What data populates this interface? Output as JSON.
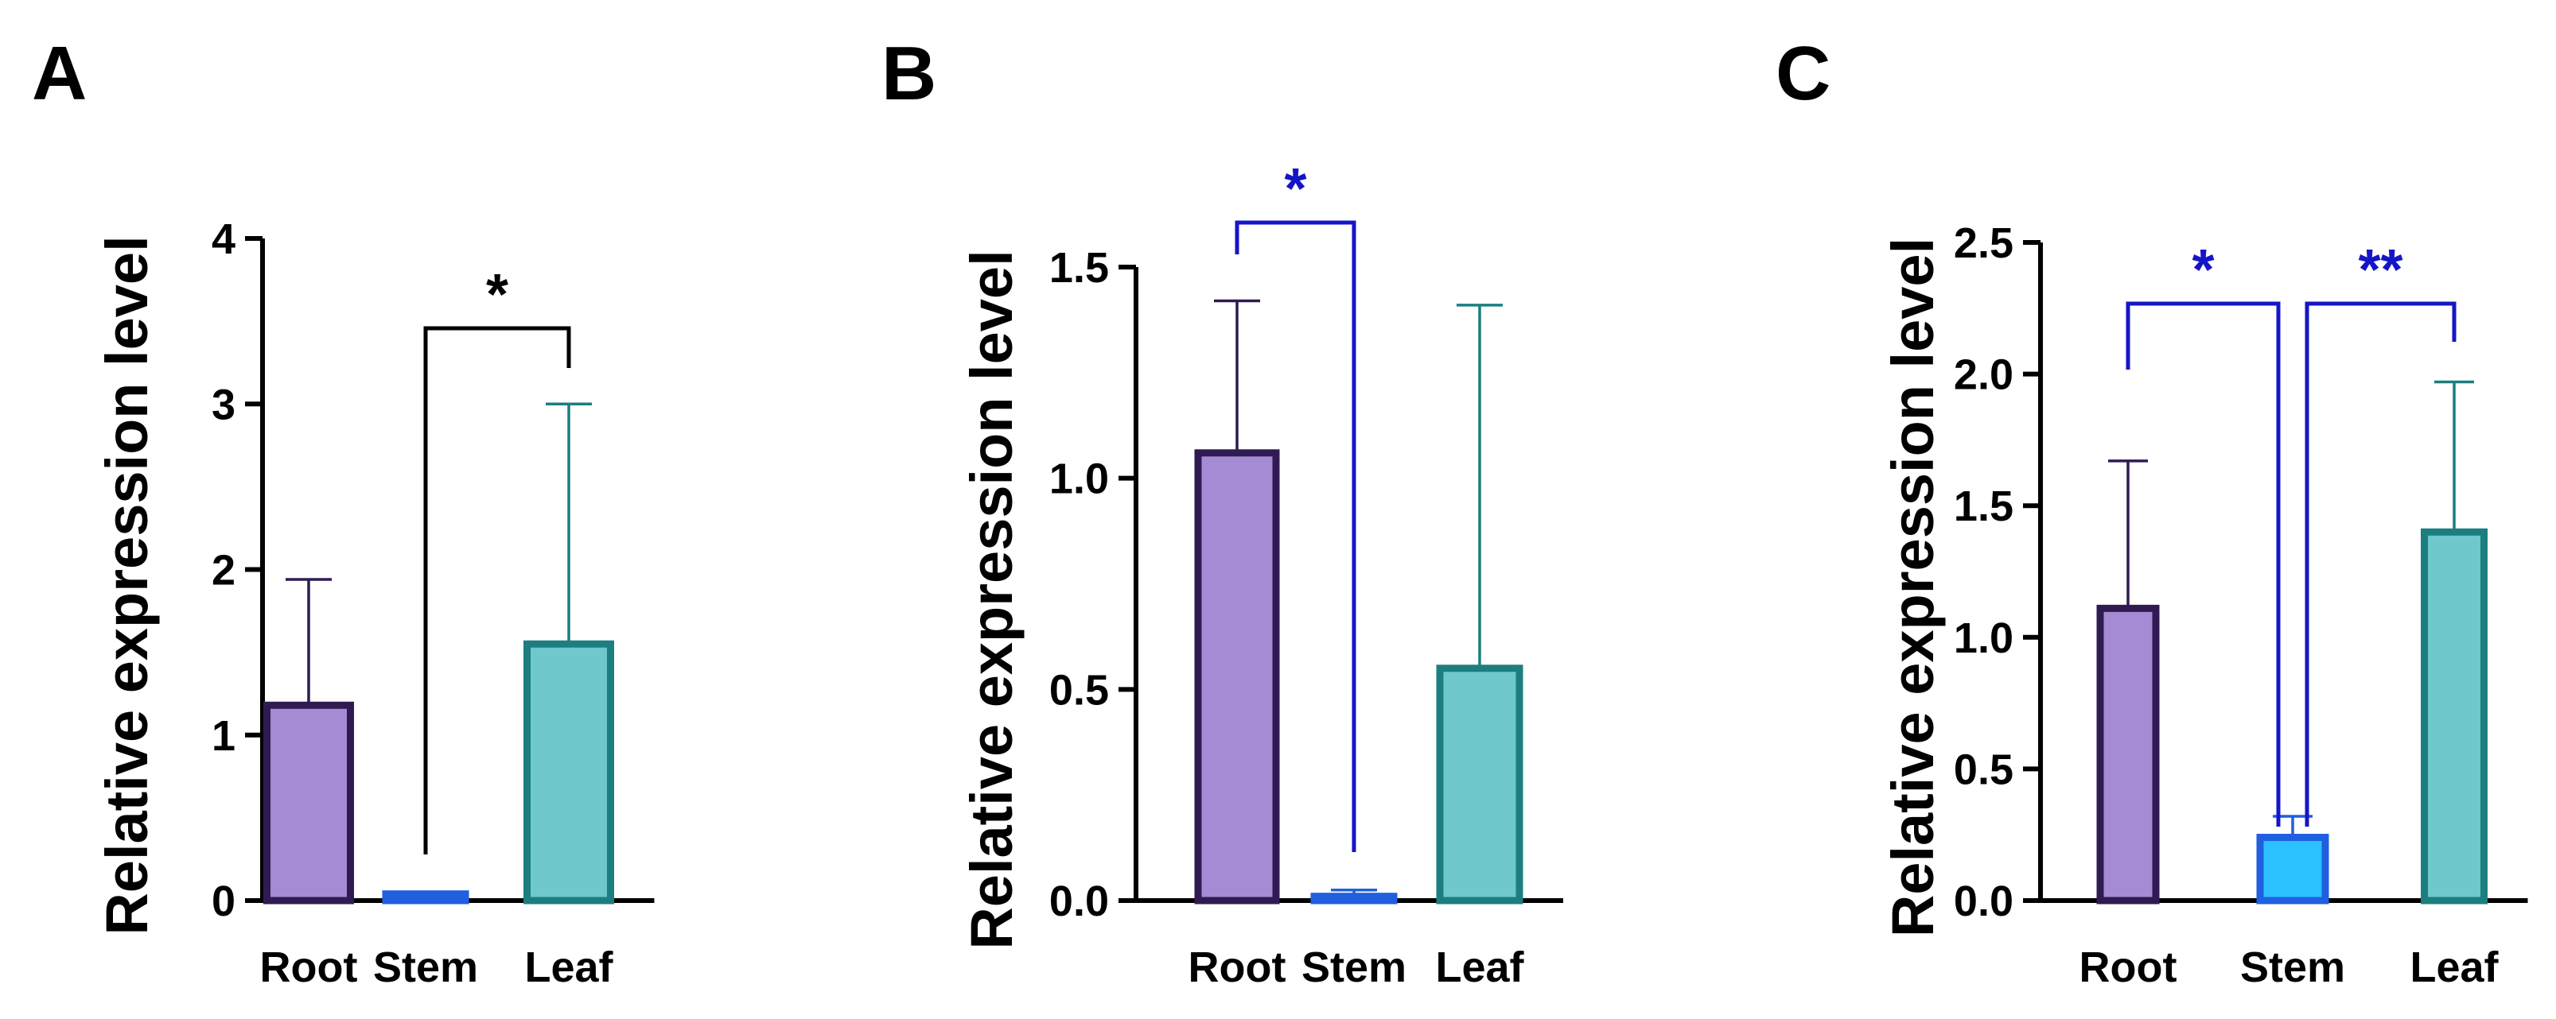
{
  "chart_data": [
    {
      "type": "bar",
      "panel": "A",
      "ylabel": "Relative expression level",
      "categories": [
        "Root",
        "Stem",
        "Leaf"
      ],
      "values": [
        1.18,
        0.04,
        1.55
      ],
      "error_upper": [
        1.94,
        0.05,
        3.0
      ],
      "ylim": [
        0,
        4
      ],
      "yticks": [
        0,
        1,
        2,
        3,
        4
      ],
      "ytick_labels": [
        "0",
        "1",
        "2",
        "3",
        "4"
      ],
      "fill_colors": [
        "#a58bd3",
        "#4f8ff2",
        "#6fc8cc"
      ],
      "edge_colors": [
        "#2f1b52",
        "#1f5fe0",
        "#1c7e7f"
      ],
      "significance": [
        {
          "from": 1,
          "to": 2,
          "label": "*",
          "color": "#000000"
        }
      ]
    },
    {
      "type": "bar",
      "panel": "B",
      "ylabel": "Relative expression level",
      "categories": [
        "Root",
        "Stem",
        "Leaf"
      ],
      "values": [
        1.06,
        0.01,
        0.55
      ],
      "error_upper": [
        1.42,
        0.025,
        1.41
      ],
      "ylim": [
        0,
        1.5
      ],
      "yticks": [
        0,
        0.5,
        1.0,
        1.5
      ],
      "ytick_labels": [
        "0.0",
        "0.5",
        "1.0",
        "1.5"
      ],
      "fill_colors": [
        "#a58bd3",
        "#4f8ff2",
        "#6fc8cc"
      ],
      "edge_colors": [
        "#2f1b52",
        "#1f5fe0",
        "#1c7e7f"
      ],
      "significance": [
        {
          "from": 0,
          "to": 1,
          "label": "*",
          "color": "#1515c8"
        }
      ]
    },
    {
      "type": "bar",
      "panel": "C",
      "ylabel": "Relative expression level",
      "categories": [
        "Root",
        "Stem",
        "Leaf"
      ],
      "values": [
        1.11,
        0.24,
        1.4
      ],
      "error_upper": [
        1.67,
        0.32,
        1.97
      ],
      "ylim": [
        0,
        2.5
      ],
      "yticks": [
        0,
        0.5,
        1.0,
        1.5,
        2.0,
        2.5
      ],
      "ytick_labels": [
        "0.0",
        "0.5",
        "1.0",
        "1.5",
        "2.0",
        "2.5"
      ],
      "fill_colors": [
        "#a58bd3",
        "#2bc0ff",
        "#6fc8cc"
      ],
      "edge_colors": [
        "#2f1b52",
        "#1f5fe0",
        "#1c7e7f"
      ],
      "significance": [
        {
          "from": 0,
          "to": 1,
          "label": "*",
          "color": "#1515c8"
        },
        {
          "from": 1,
          "to": 2,
          "label": "**",
          "color": "#1515c8"
        }
      ]
    }
  ]
}
